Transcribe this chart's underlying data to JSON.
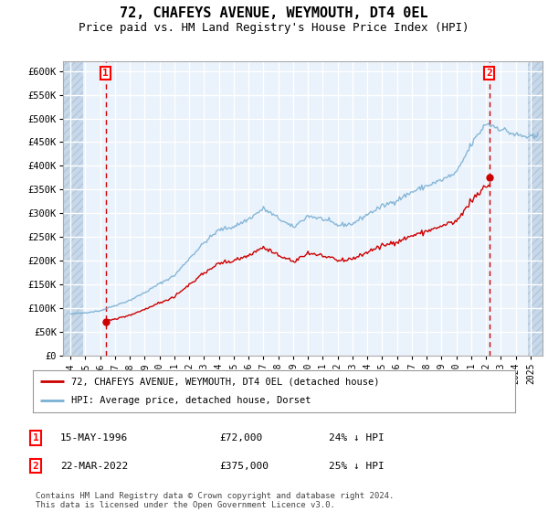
{
  "title": "72, CHAFEYS AVENUE, WEYMOUTH, DT4 0EL",
  "subtitle": "Price paid vs. HM Land Registry's House Price Index (HPI)",
  "ylim": [
    0,
    620000
  ],
  "yticks": [
    0,
    50000,
    100000,
    150000,
    200000,
    250000,
    300000,
    350000,
    400000,
    450000,
    500000,
    550000,
    600000
  ],
  "ytick_labels": [
    "£0",
    "£50K",
    "£100K",
    "£150K",
    "£200K",
    "£250K",
    "£300K",
    "£350K",
    "£400K",
    "£450K",
    "£500K",
    "£550K",
    "£600K"
  ],
  "hpi_color": "#7ab0d4",
  "property_color": "#cc0000",
  "marker1_x": 1996.37,
  "marker1_y": 72000,
  "marker2_x": 2022.22,
  "marker2_y": 375000,
  "legend_property": "72, CHAFEYS AVENUE, WEYMOUTH, DT4 0EL (detached house)",
  "legend_hpi": "HPI: Average price, detached house, Dorset",
  "background_plot": "#dce9f5",
  "background_white": "#eaf2fb",
  "hatch_color": "#c8d8e8",
  "grid_color": "#ffffff",
  "title_fontsize": 11,
  "subtitle_fontsize": 9,
  "xlim_left": 1993.5,
  "xlim_right": 2025.8,
  "hatch_right_start": 2024.8
}
